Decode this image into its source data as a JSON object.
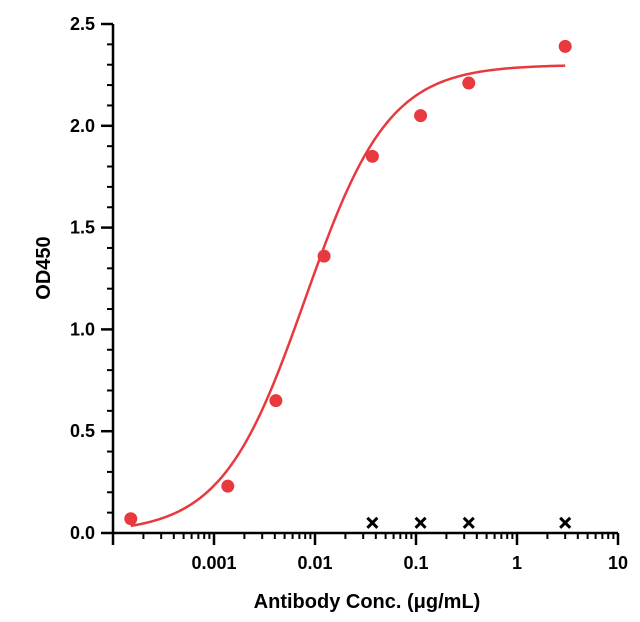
{
  "chart_data": {
    "type": "scatter",
    "title": "",
    "xlabel": "Antibody Conc. (μg/mL)",
    "ylabel": "OD450",
    "x_scale": "log",
    "xlim": [
      0.0001,
      10
    ],
    "ylim": [
      0,
      2.5
    ],
    "x_tick_labels": [
      "0.001",
      "0.01",
      "0.1",
      "1",
      "10"
    ],
    "x_tick_values": [
      0.001,
      0.01,
      0.1,
      1,
      10
    ],
    "y_tick_labels": [
      "0.0",
      "0.5",
      "1.0",
      "1.5",
      "2.0",
      "2.5"
    ],
    "y_tick_values": [
      0,
      0.5,
      1.0,
      1.5,
      2.0,
      2.5
    ],
    "grid": false,
    "legend": "none",
    "series": [
      {
        "marker": "circle",
        "color": "#e8393f",
        "x": [
          0.00015,
          0.00137,
          0.0041,
          0.0123,
          0.037,
          0.111,
          0.333,
          3.0
        ],
        "y": [
          0.07,
          0.23,
          0.65,
          1.36,
          1.85,
          2.05,
          2.21,
          2.39
        ]
      },
      {
        "marker": "x",
        "color": "#000000",
        "x": [
          0.037,
          0.111,
          0.333,
          3.0
        ],
        "y": [
          0.05,
          0.05,
          0.05,
          0.05
        ]
      }
    ],
    "fit_curve": {
      "color": "#e8393f",
      "model": "4PL",
      "bottom": 0.0,
      "top": 2.3,
      "ec50": 0.008,
      "hill": 1.05,
      "x_range": [
        0.00015,
        3.0
      ]
    }
  }
}
